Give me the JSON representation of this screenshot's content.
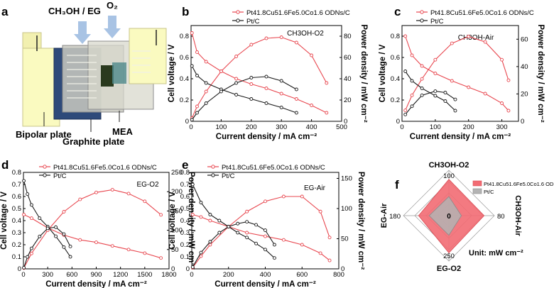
{
  "colors": {
    "pt_alloy": "#e8474f",
    "pt_c": "#1a1a1a",
    "radar_alloy_fill": "#f26b73",
    "radar_ptc_fill": "#b3b3b3"
  },
  "panel_letters": {
    "a": "a",
    "b": "b",
    "c": "c",
    "d": "d",
    "e": "e",
    "f": "f"
  },
  "schematic": {
    "feed_label": "CH₃OH / EG",
    "oxidant_label": "O₂",
    "bipolar_label": "Bipolar plate",
    "graphite_label": "Graphite plate",
    "mea_label": "MEA"
  },
  "legend": {
    "alloy": "Pt41.8Cu51.6Fe5.0Co1.6 ODNs/C",
    "ptc": "Pt/C"
  },
  "axis_text": {
    "xlabel": "Current density / mA cm⁻²",
    "ylabel_left": "Cell voltage / V",
    "ylabel_right": "Power density / mW cm⁻²"
  },
  "chart_data": [
    {
      "panel": "b",
      "type": "line",
      "title": "CH3OH-O2",
      "xlim": [
        0,
        500
      ],
      "xticks": [
        0,
        100,
        200,
        300,
        400,
        500
      ],
      "ylim_left": [
        0,
        0.9
      ],
      "yticks_left": [
        0,
        0.2,
        0.4,
        0.6,
        0.8
      ],
      "ylim_right": [
        0,
        90
      ],
      "yticks_right": [
        0,
        20,
        40,
        60,
        80
      ],
      "series": [
        {
          "name": "Pt41.8Cu51.6Fe5.0Co1.6 ODNs/C",
          "kind": "voltage",
          "axis": "left",
          "x": [
            3,
            20,
            50,
            100,
            150,
            200,
            250,
            300,
            350,
            400,
            450
          ],
          "y": [
            0.83,
            0.65,
            0.56,
            0.47,
            0.4,
            0.35,
            0.31,
            0.26,
            0.21,
            0.15,
            0.08
          ]
        },
        {
          "name": "Pt41.8Cu51.6Fe5.0Co1.6 ODNs/C",
          "kind": "power",
          "axis": "right",
          "x": [
            3,
            20,
            50,
            100,
            150,
            200,
            250,
            300,
            350,
            400,
            450
          ],
          "y": [
            3,
            14,
            28,
            47,
            61,
            72,
            78,
            79,
            74,
            62,
            36
          ]
        },
        {
          "name": "Pt/C",
          "kind": "voltage",
          "axis": "left",
          "x": [
            3,
            20,
            50,
            100,
            150,
            200,
            250,
            300,
            350
          ],
          "y": [
            0.52,
            0.43,
            0.36,
            0.3,
            0.25,
            0.21,
            0.17,
            0.13,
            0.08
          ]
        },
        {
          "name": "Pt/C",
          "kind": "power",
          "axis": "right",
          "x": [
            3,
            20,
            50,
            100,
            150,
            200,
            250,
            300,
            350
          ],
          "y": [
            1.5,
            8,
            17,
            28,
            36,
            41,
            42,
            38,
            30
          ]
        }
      ]
    },
    {
      "panel": "c",
      "type": "line",
      "title": "CH3OH-Air",
      "xlim": [
        0,
        350
      ],
      "xticks": [
        0,
        100,
        200,
        300
      ],
      "ylim_left": [
        0,
        0.9
      ],
      "yticks_left": [
        0,
        0.2,
        0.4,
        0.6,
        0.8
      ],
      "ylim_right": [
        0,
        70
      ],
      "yticks_right": [
        0,
        20,
        40,
        60
      ],
      "series": [
        {
          "name": "Pt41.8Cu51.6Fe5.0Co1.6 ODNs/C",
          "kind": "voltage",
          "axis": "left",
          "x": [
            10,
            30,
            60,
            100,
            150,
            200,
            250,
            300,
            320
          ],
          "y": [
            0.8,
            0.62,
            0.52,
            0.45,
            0.38,
            0.32,
            0.26,
            0.17,
            0.1
          ]
        },
        {
          "name": "Pt41.8Cu51.6Fe5.0Co1.6 ODNs/C",
          "kind": "power",
          "axis": "right",
          "x": [
            10,
            30,
            60,
            100,
            150,
            200,
            250,
            300,
            320
          ],
          "y": [
            8,
            19,
            31,
            45,
            57,
            62,
            58,
            45,
            30
          ]
        },
        {
          "name": "Pt/C",
          "kind": "voltage",
          "axis": "left",
          "x": [
            10,
            30,
            60,
            100,
            130,
            160
          ],
          "y": [
            0.47,
            0.38,
            0.31,
            0.24,
            0.19,
            0.1
          ]
        },
        {
          "name": "Pt/C",
          "kind": "power",
          "axis": "right",
          "x": [
            10,
            30,
            60,
            100,
            130,
            160
          ],
          "y": [
            5,
            11,
            19,
            22,
            21,
            16
          ]
        }
      ]
    },
    {
      "panel": "d",
      "type": "line",
      "title": "EG-O2",
      "xlim": [
        0,
        1800
      ],
      "xticks": [
        0,
        300,
        600,
        900,
        1200,
        1500,
        1800
      ],
      "ylim_left": [
        0,
        0.8
      ],
      "yticks_left": [
        0,
        0.1,
        0.2,
        0.3,
        0.4,
        0.5,
        0.6,
        0.7,
        0.8
      ],
      "ylim_right": [
        0,
        250
      ],
      "yticks_right": [
        0,
        50,
        100,
        150,
        200,
        250
      ],
      "series": [
        {
          "name": "Pt41.8Cu51.6Fe5.0Co1.6 ODNs/C",
          "kind": "voltage",
          "axis": "left",
          "x": [
            5,
            100,
            300,
            500,
            700,
            900,
            1100,
            1300,
            1500,
            1700
          ],
          "y": [
            0.45,
            0.42,
            0.34,
            0.28,
            0.24,
            0.22,
            0.19,
            0.16,
            0.13,
            0.09
          ]
        },
        {
          "name": "Pt41.8Cu51.6Fe5.0Co1.6 ODNs/C",
          "kind": "power",
          "axis": "right",
          "x": [
            5,
            100,
            300,
            500,
            700,
            900,
            1100,
            1300,
            1500,
            1700
          ],
          "y": [
            2,
            40,
            100,
            148,
            180,
            198,
            205,
            195,
            175,
            140
          ]
        },
        {
          "name": "Pt/C",
          "kind": "voltage",
          "axis": "left",
          "x": [
            5,
            50,
            100,
            200,
            300,
            400,
            500,
            580
          ],
          "y": [
            0.73,
            0.62,
            0.53,
            0.42,
            0.35,
            0.27,
            0.18,
            0.1
          ]
        },
        {
          "name": "Pt/C",
          "kind": "power",
          "axis": "right",
          "x": [
            5,
            50,
            100,
            200,
            300,
            400,
            500,
            580
          ],
          "y": [
            3,
            31,
            53,
            84,
            105,
            108,
            90,
            58
          ]
        }
      ]
    },
    {
      "panel": "e",
      "type": "line",
      "title": "EG-Air",
      "xlim": [
        0,
        800
      ],
      "xticks": [
        0,
        200,
        400,
        600,
        800
      ],
      "ylim_left": [
        0,
        0.8
      ],
      "yticks_left": [
        0,
        0.1,
        0.2,
        0.3,
        0.4,
        0.5,
        0.6,
        0.7,
        0.8
      ],
      "ylim_right": [
        0,
        160
      ],
      "yticks_right": [
        0,
        50,
        100,
        150
      ],
      "series": [
        {
          "name": "Pt41.8Cu51.6Fe5.0Co1.6 ODNs/C",
          "kind": "voltage",
          "axis": "left",
          "x": [
            5,
            50,
            100,
            200,
            300,
            400,
            500,
            600,
            700,
            750
          ],
          "y": [
            0.45,
            0.43,
            0.4,
            0.35,
            0.3,
            0.27,
            0.24,
            0.2,
            0.13,
            0.07
          ]
        },
        {
          "name": "Pt41.8Cu51.6Fe5.0Co1.6 ODNs/C",
          "kind": "power",
          "axis": "right",
          "x": [
            5,
            50,
            100,
            200,
            300,
            400,
            500,
            600,
            700,
            750
          ],
          "y": [
            2,
            21,
            40,
            70,
            95,
            112,
            120,
            120,
            95,
            52
          ]
        },
        {
          "name": "Pt/C",
          "kind": "voltage",
          "axis": "left",
          "x": [
            5,
            50,
            100,
            150,
            200,
            250,
            300,
            350,
            400,
            450
          ],
          "y": [
            0.7,
            0.55,
            0.45,
            0.4,
            0.35,
            0.3,
            0.26,
            0.21,
            0.16,
            0.09
          ]
        },
        {
          "name": "Pt/C",
          "kind": "power",
          "axis": "right",
          "x": [
            5,
            50,
            100,
            150,
            200,
            250,
            300,
            350,
            400,
            450
          ],
          "y": [
            3,
            27,
            45,
            60,
            70,
            75,
            78,
            73,
            64,
            40
          ]
        }
      ]
    },
    {
      "panel": "f",
      "type": "radar",
      "axes": [
        {
          "label": "CH3OH-O2",
          "max": 100
        },
        {
          "label": "CH3OH-Air",
          "max": 80
        },
        {
          "label": "EG-O2",
          "max": 250
        },
        {
          "label": "EG-Air",
          "max": 180
        }
      ],
      "center_label": "0",
      "unit": "Unit: mW cm⁻²",
      "series": [
        {
          "name": "Pt41.8Cu51.6Fe5.0Co1.6 ODNs/C",
          "values": [
            80,
            62,
            205,
            120
          ]
        },
        {
          "name": "Pt/C",
          "values": [
            42,
            22,
            108,
            78
          ]
        }
      ]
    }
  ]
}
